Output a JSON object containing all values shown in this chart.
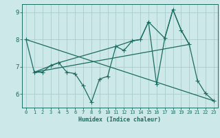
{
  "title": "",
  "xlabel": "Humidex (Indice chaleur)",
  "bg_color": "#cce8e8",
  "grid_color_major": "#aacccc",
  "grid_color_minor": "#bbdddd",
  "line_color": "#1a6b60",
  "xlim": [
    -0.5,
    23.5
  ],
  "ylim": [
    5.5,
    9.3
  ],
  "xticks": [
    0,
    1,
    2,
    3,
    4,
    5,
    6,
    7,
    8,
    9,
    10,
    11,
    12,
    13,
    14,
    15,
    16,
    17,
    18,
    19,
    20,
    21,
    22,
    23
  ],
  "yticks": [
    6,
    7,
    8,
    9
  ],
  "series1_x": [
    0,
    1,
    2,
    3,
    4,
    5,
    6,
    7,
    8,
    9,
    10,
    11,
    12,
    13,
    14,
    15,
    16,
    17,
    18,
    19,
    20,
    21,
    22,
    23
  ],
  "series1_y": [
    8.0,
    6.8,
    6.8,
    7.05,
    7.15,
    6.8,
    6.75,
    6.3,
    5.7,
    6.55,
    6.65,
    7.75,
    7.6,
    7.95,
    8.0,
    8.65,
    6.35,
    8.05,
    9.1,
    8.35,
    7.82,
    6.5,
    6.02,
    5.75
  ],
  "series2_x": [
    0,
    23
  ],
  "series2_y": [
    8.0,
    5.75
  ],
  "series3_x": [
    1,
    20
  ],
  "series3_y": [
    6.8,
    7.82
  ],
  "series4_x": [
    1,
    4,
    11,
    13,
    14,
    15,
    17,
    18,
    19,
    20
  ],
  "series4_y": [
    6.8,
    7.15,
    7.75,
    7.95,
    8.0,
    8.65,
    8.05,
    9.1,
    8.35,
    7.82
  ]
}
